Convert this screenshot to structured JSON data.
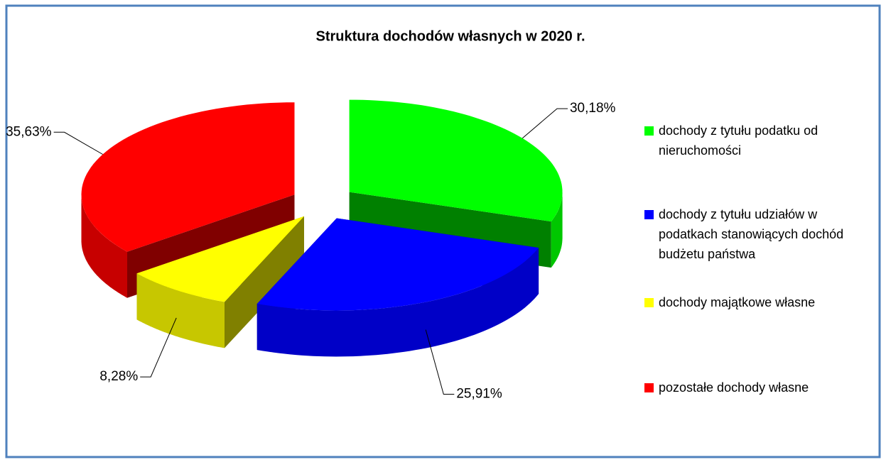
{
  "chart_data": {
    "type": "pie3d",
    "title": "Struktura dochodów własnych w 2020 r.",
    "categories": [
      "dochody z tytułu podatku od nieruchomości",
      "dochody z tytułu udziałów w podatkach stanowiących dochód budżetu państwa",
      "dochody majątkowe własne",
      "pozostałe dochody własne"
    ],
    "values": [
      30.18,
      25.91,
      8.28,
      35.63
    ],
    "value_labels": [
      "30,18%",
      "25,91%",
      "8,28%",
      "35,63%"
    ],
    "colors": [
      "#00ff00",
      "#0000ff",
      "#ffff00",
      "#ff0000"
    ],
    "legend": "right"
  }
}
